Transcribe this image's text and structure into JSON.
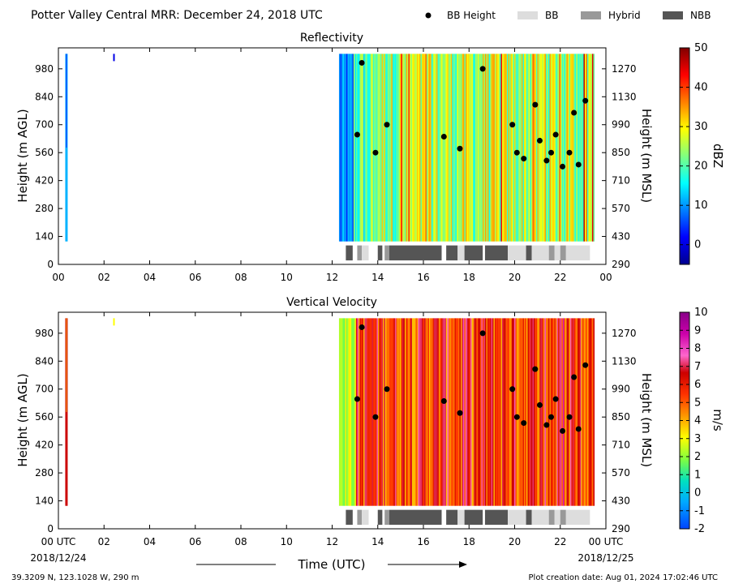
{
  "header": {
    "title": "Potter Valley Central MRR:  December 24, 2018 UTC",
    "legend": [
      {
        "label": "BB Height",
        "kind": "dot",
        "color": "#000000"
      },
      {
        "label": "BB",
        "kind": "box",
        "color": "#dddddd"
      },
      {
        "label": "Hybrid",
        "kind": "box",
        "color": "#999999"
      },
      {
        "label": "NBB",
        "kind": "box",
        "color": "#555555"
      }
    ]
  },
  "footer": {
    "location": "39.3209 N, 123.1028 W, 290 m",
    "creation": "Plot creation date: Aug 01, 2024 17:02:46 UTC",
    "xlabel": "Time (UTC)",
    "start_label": "2018/12/24",
    "end_label": "2018/12/25"
  },
  "chart_data": [
    {
      "type": "heatmap",
      "title": "Reflectivity",
      "xlabel": "Time (UTC)",
      "ylabel": "Height (m AGL)",
      "ylabel_right": "Height (m MSL)",
      "x_ticks": [
        "00",
        "02",
        "04",
        "06",
        "08",
        "10",
        "12",
        "14",
        "16",
        "18",
        "20",
        "22",
        "00"
      ],
      "y_ticks": [
        0,
        140,
        280,
        420,
        560,
        700,
        840,
        980
      ],
      "y2_ticks": [
        290,
        430,
        570,
        710,
        850,
        990,
        1130,
        1270
      ],
      "xlim": [
        0,
        24
      ],
      "ylim": [
        0,
        1085
      ],
      "colorbar": {
        "label": "dBZ",
        "min": -5,
        "max": 50,
        "ticks": [
          0,
          10,
          20,
          30,
          40,
          50
        ],
        "colormap": "jet"
      },
      "data_coverage_hours": [
        [
          0.3,
          0.4
        ],
        [
          12.3,
          23.5
        ]
      ],
      "bb_height": {
        "x": [
          13.1,
          13.3,
          13.9,
          14.4,
          16.9,
          17.6,
          18.6,
          19.9,
          20.1,
          20.4,
          20.9,
          21.1,
          21.4,
          21.6,
          21.8,
          22.1,
          22.4,
          22.6,
          22.8,
          23.1
        ],
        "y": [
          650,
          1010,
          560,
          700,
          640,
          580,
          980,
          700,
          560,
          530,
          800,
          620,
          520,
          560,
          650,
          490,
          560,
          760,
          500,
          820
        ]
      },
      "bb_type_bar": [
        {
          "start": 12.6,
          "end": 12.9,
          "type": "NBB"
        },
        {
          "start": 13.1,
          "end": 13.3,
          "type": "Hybrid"
        },
        {
          "start": 13.3,
          "end": 13.6,
          "type": "BB"
        },
        {
          "start": 14.0,
          "end": 14.2,
          "type": "NBB"
        },
        {
          "start": 14.3,
          "end": 14.5,
          "type": "Hybrid"
        },
        {
          "start": 14.5,
          "end": 16.8,
          "type": "NBB"
        },
        {
          "start": 17.0,
          "end": 17.5,
          "type": "NBB"
        },
        {
          "start": 17.5,
          "end": 17.8,
          "type": "BB"
        },
        {
          "start": 17.8,
          "end": 18.6,
          "type": "NBB"
        },
        {
          "start": 18.7,
          "end": 19.7,
          "type": "NBB"
        },
        {
          "start": 19.7,
          "end": 20.5,
          "type": "BB"
        },
        {
          "start": 20.5,
          "end": 20.75,
          "type": "NBB"
        },
        {
          "start": 20.75,
          "end": 21.5,
          "type": "BB"
        },
        {
          "start": 21.5,
          "end": 21.75,
          "type": "Hybrid"
        },
        {
          "start": 21.75,
          "end": 22.0,
          "type": "BB"
        },
        {
          "start": 22.0,
          "end": 22.25,
          "type": "Hybrid"
        },
        {
          "start": 22.25,
          "end": 23.3,
          "type": "BB"
        }
      ]
    },
    {
      "type": "heatmap",
      "title": "Vertical Velocity",
      "xlabel": "Time (UTC)",
      "ylabel": "Height (m AGL)",
      "ylabel_right": "Height (m MSL)",
      "x_ticks": [
        "00 UTC",
        "02",
        "04",
        "06",
        "08",
        "10",
        "12",
        "14",
        "16",
        "18",
        "20",
        "22",
        "00 UTC"
      ],
      "y_ticks": [
        0,
        140,
        280,
        420,
        560,
        700,
        840,
        980
      ],
      "y2_ticks": [
        290,
        430,
        570,
        710,
        850,
        990,
        1130,
        1270
      ],
      "xlim": [
        0,
        24
      ],
      "ylim": [
        0,
        1085
      ],
      "colorbar": {
        "label": "m/s",
        "min": -2,
        "max": 10,
        "ticks": [
          -2,
          -1,
          0,
          1,
          2,
          3,
          4,
          5,
          6,
          7,
          8,
          9,
          10
        ],
        "colormap": "velocity"
      },
      "data_coverage_hours": [
        [
          0.3,
          0.4
        ],
        [
          12.3,
          23.5
        ]
      ],
      "bb_height": {
        "x": [
          13.1,
          13.3,
          13.9,
          14.4,
          16.9,
          17.6,
          18.6,
          19.9,
          20.1,
          20.4,
          20.9,
          21.1,
          21.4,
          21.6,
          21.8,
          22.1,
          22.4,
          22.6,
          22.8,
          23.1
        ],
        "y": [
          650,
          1010,
          560,
          700,
          640,
          580,
          980,
          700,
          560,
          530,
          800,
          620,
          520,
          560,
          650,
          490,
          560,
          760,
          500,
          820
        ]
      },
      "bb_type_bar": [
        {
          "start": 12.6,
          "end": 12.9,
          "type": "NBB"
        },
        {
          "start": 13.1,
          "end": 13.3,
          "type": "Hybrid"
        },
        {
          "start": 13.3,
          "end": 13.6,
          "type": "BB"
        },
        {
          "start": 14.0,
          "end": 14.2,
          "type": "NBB"
        },
        {
          "start": 14.3,
          "end": 14.5,
          "type": "Hybrid"
        },
        {
          "start": 14.5,
          "end": 16.8,
          "type": "NBB"
        },
        {
          "start": 17.0,
          "end": 17.5,
          "type": "NBB"
        },
        {
          "start": 17.5,
          "end": 17.8,
          "type": "BB"
        },
        {
          "start": 17.8,
          "end": 18.6,
          "type": "NBB"
        },
        {
          "start": 18.7,
          "end": 19.7,
          "type": "NBB"
        },
        {
          "start": 19.7,
          "end": 20.5,
          "type": "BB"
        },
        {
          "start": 20.5,
          "end": 20.75,
          "type": "NBB"
        },
        {
          "start": 20.75,
          "end": 21.5,
          "type": "BB"
        },
        {
          "start": 21.5,
          "end": 21.75,
          "type": "Hybrid"
        },
        {
          "start": 21.75,
          "end": 22.0,
          "type": "BB"
        },
        {
          "start": 22.0,
          "end": 22.25,
          "type": "Hybrid"
        },
        {
          "start": 22.25,
          "end": 23.3,
          "type": "BB"
        }
      ]
    }
  ]
}
